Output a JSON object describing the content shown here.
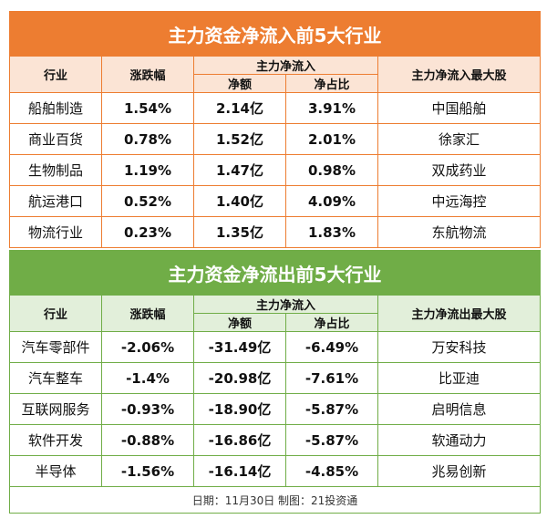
{
  "inflow": {
    "title": "主力资金净流入前5大行业",
    "headers": {
      "industry": "行业",
      "change": "涨跌幅",
      "group": "主力净流入",
      "amount": "净额",
      "ratio": "净占比",
      "top": "主力净流入最大股"
    },
    "rows": [
      {
        "industry": "船舶制造",
        "change": "1.54%",
        "amount": "2.14亿",
        "ratio": "3.91%",
        "top": "中国船舶"
      },
      {
        "industry": "商业百货",
        "change": "0.78%",
        "amount": "1.52亿",
        "ratio": "2.01%",
        "top": "徐家汇"
      },
      {
        "industry": "生物制品",
        "change": "1.19%",
        "amount": "1.47亿",
        "ratio": "0.98%",
        "top": "双成药业"
      },
      {
        "industry": "航运港口",
        "change": "0.52%",
        "amount": "1.40亿",
        "ratio": "4.09%",
        "top": "中远海控"
      },
      {
        "industry": "物流行业",
        "change": "0.23%",
        "amount": "1.35亿",
        "ratio": "1.83%",
        "top": "东航物流"
      }
    ]
  },
  "outflow": {
    "title": "主力资金净流出前5大行业",
    "headers": {
      "industry": "行业",
      "change": "涨跌幅",
      "group": "主力净流入",
      "amount": "净额",
      "ratio": "净占比",
      "top": "主力净流出最大股"
    },
    "rows": [
      {
        "industry": "汽车零部件",
        "change": "-2.06%",
        "amount": "-31.49亿",
        "ratio": "-6.49%",
        "top": "万安科技"
      },
      {
        "industry": "汽车整车",
        "change": "-1.4%",
        "amount": "-20.98亿",
        "ratio": "-7.61%",
        "top": "比亚迪"
      },
      {
        "industry": "互联网服务",
        "change": "-0.93%",
        "amount": "-18.90亿",
        "ratio": "-5.87%",
        "top": "启明信息"
      },
      {
        "industry": "软件开发",
        "change": "-0.88%",
        "amount": "-16.86亿",
        "ratio": "-5.87%",
        "top": "软通动力"
      },
      {
        "industry": "半导体",
        "change": "-1.56%",
        "amount": "-16.14亿",
        "ratio": "-4.85%",
        "top": "兆易创新"
      }
    ]
  },
  "footer": "日期：11月30日 制图：21投资通"
}
